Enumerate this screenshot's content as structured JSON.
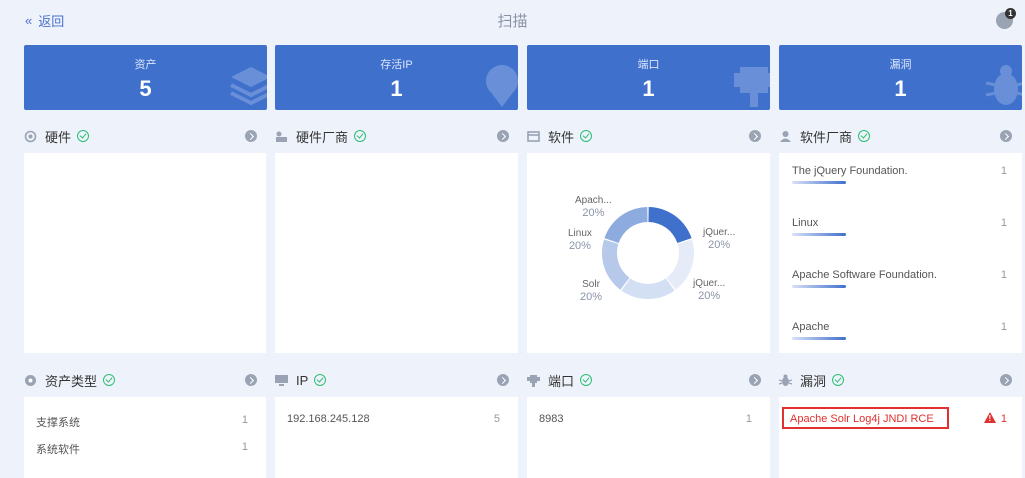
{
  "header": {
    "back_label": "返回",
    "title": "扫描",
    "notification_count": "1"
  },
  "stats": [
    {
      "label": "资产",
      "value": "5",
      "icon": "stack-icon"
    },
    {
      "label": "存活IP",
      "value": "1",
      "icon": "ip-pin-icon"
    },
    {
      "label": "端口",
      "value": "1",
      "icon": "port-icon"
    },
    {
      "label": "漏洞",
      "value": "1",
      "icon": "bug-icon"
    }
  ],
  "sections": {
    "hardware": {
      "title": "硬件"
    },
    "hardware_vendor": {
      "title": "硬件厂商"
    },
    "software": {
      "title": "软件"
    },
    "software_vendor": {
      "title": "软件厂商"
    },
    "asset_type": {
      "title": "资产类型"
    },
    "ip": {
      "title": "IP"
    },
    "port": {
      "title": "端口"
    },
    "vuln": {
      "title": "漏洞"
    }
  },
  "software_vendors": [
    {
      "name": "The jQuery Foundation.",
      "count": "1"
    },
    {
      "name": "Linux",
      "count": "1"
    },
    {
      "name": "Apache Software Foundation.",
      "count": "1"
    },
    {
      "name": "Apache",
      "count": "1"
    }
  ],
  "asset_types": [
    {
      "name": "支撑系统",
      "count": "1"
    },
    {
      "name": "系统软件",
      "count": "1"
    }
  ],
  "ips": [
    {
      "address": "192.168.245.128",
      "count": "5"
    }
  ],
  "ports": [
    {
      "port": "8983",
      "count": "1"
    }
  ],
  "vulns": [
    {
      "name": "Apache Solr Log4j JNDI RCE",
      "count": "1"
    }
  ],
  "colors": {
    "accent": "#3e70cc",
    "danger": "#e0302f",
    "ok": "#2ebd72"
  },
  "chart_data": {
    "type": "pie",
    "donut": true,
    "categories": [
      "Apach...",
      "jQuer...",
      "jQuer...",
      "Solr",
      "Linux"
    ],
    "values": [
      20,
      20,
      20,
      20,
      20
    ],
    "labels": [
      "Apach...",
      "jQuer...",
      "jQuer...",
      "Solr",
      "Linux"
    ],
    "percent_labels": [
      "20%",
      "20%",
      "20%",
      "20%",
      "20%"
    ],
    "colors": [
      "#3e70cc",
      "#e6ecf7",
      "#d3dff2",
      "#b6c9ea",
      "#8eabdf"
    ]
  }
}
